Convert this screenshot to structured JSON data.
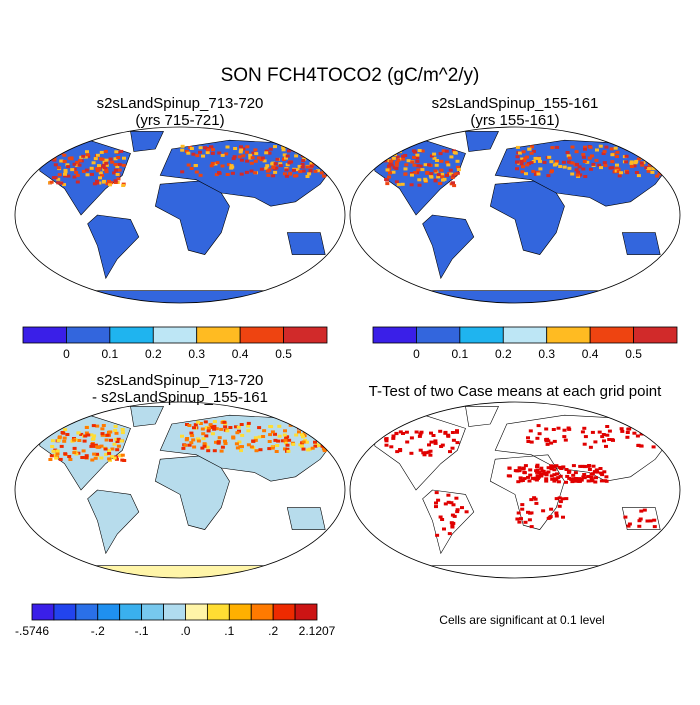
{
  "title": "SON FCH4TOCO2 (gC/m^2/y)",
  "panels": [
    {
      "title": [
        "s2sLandSpinup_713-720",
        "(yrs 715-721)"
      ],
      "colorbar": {
        "labels": [
          "0",
          "0.1",
          "0.2",
          "0.3",
          "0.4",
          "0.5"
        ],
        "colors": [
          "#3a1fe8",
          "#3366dd",
          "#1fb4ef",
          "#bde6f5",
          "#ffbb22",
          "#ee4411",
          "#d12a2a"
        ]
      }
    },
    {
      "title": [
        "s2sLandSpinup_155-161",
        "(yrs 155-161)"
      ],
      "colorbar": {
        "labels": [
          "0",
          "0.1",
          "0.2",
          "0.3",
          "0.4",
          "0.5"
        ],
        "colors": [
          "#3a1fe8",
          "#3366dd",
          "#1fb4ef",
          "#bde6f5",
          "#ffbb22",
          "#ee4411",
          "#d12a2a"
        ]
      }
    },
    {
      "title": [
        "s2sLandSpinup_713-720",
        "- s2sLandSpinup_155-161"
      ],
      "colorbar": {
        "labels": [
          "-.5746",
          "-.2",
          "-.1",
          ".0",
          ".1",
          ".2",
          "2.1207"
        ],
        "colors": [
          "#3a1fe8",
          "#2244ee",
          "#2a70e8",
          "#1f90f0",
          "#3ab0ee",
          "#77c8ee",
          "#b0dcef",
          "#fff5a8",
          "#ffdd33",
          "#ffb000",
          "#ff7a00",
          "#ee2a00",
          "#cc1414"
        ]
      }
    },
    {
      "title": [
        "T-Test of two Case means at each grid point"
      ],
      "note": "Cells are significant at 0.1 level"
    }
  ]
}
